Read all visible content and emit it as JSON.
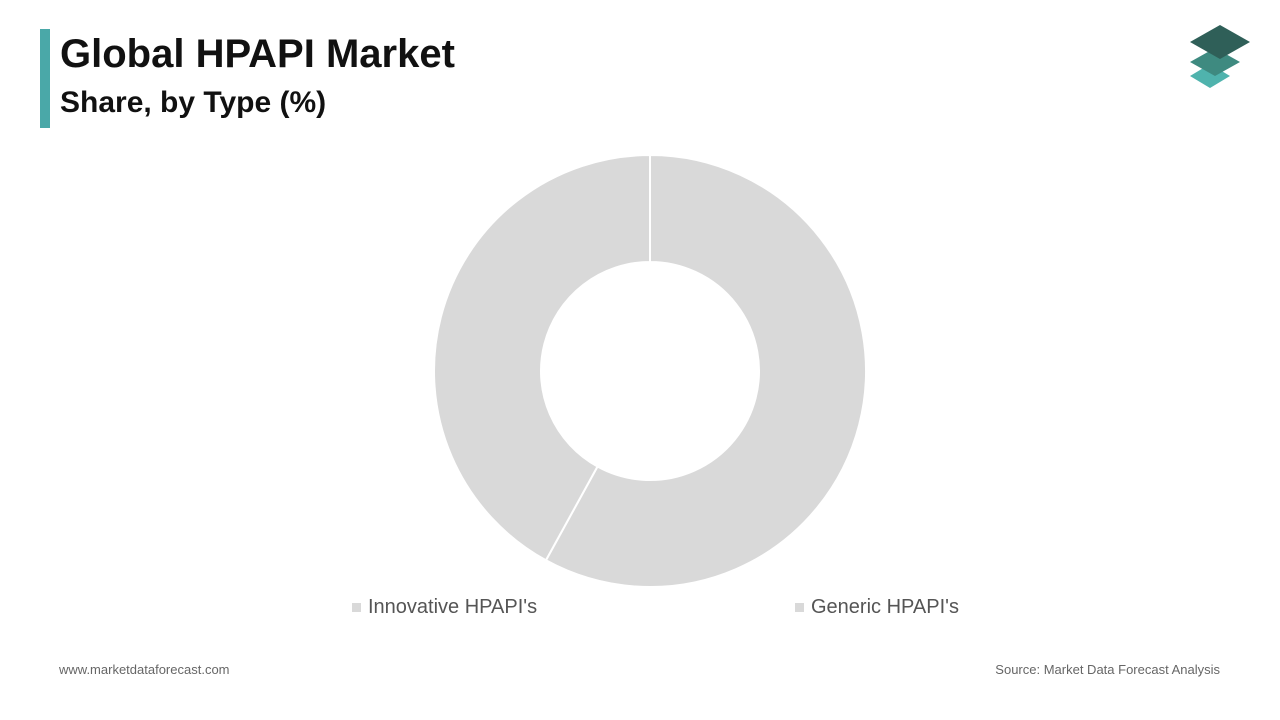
{
  "header": {
    "title": "Global HPAPI Market",
    "subtitle": "Share, by Type (%)",
    "accent_color": "#4aa8a8"
  },
  "logo": {
    "icon": "stacked-layers-logo",
    "colors": [
      "#2f5f58",
      "#3e8a80",
      "#4fb3ad"
    ]
  },
  "chart_data": {
    "type": "pie",
    "donut": true,
    "categories": [
      "Innovative HPAPI's",
      "Generic HPAPI's"
    ],
    "values": [
      58,
      42
    ],
    "colors": [
      "#d9d9d9",
      "#d9d9d9"
    ],
    "legend_position": "bottom"
  },
  "footer": {
    "website": "www.marketdataforecast.com",
    "source": "Source: Market Data Forecast Analysis"
  }
}
